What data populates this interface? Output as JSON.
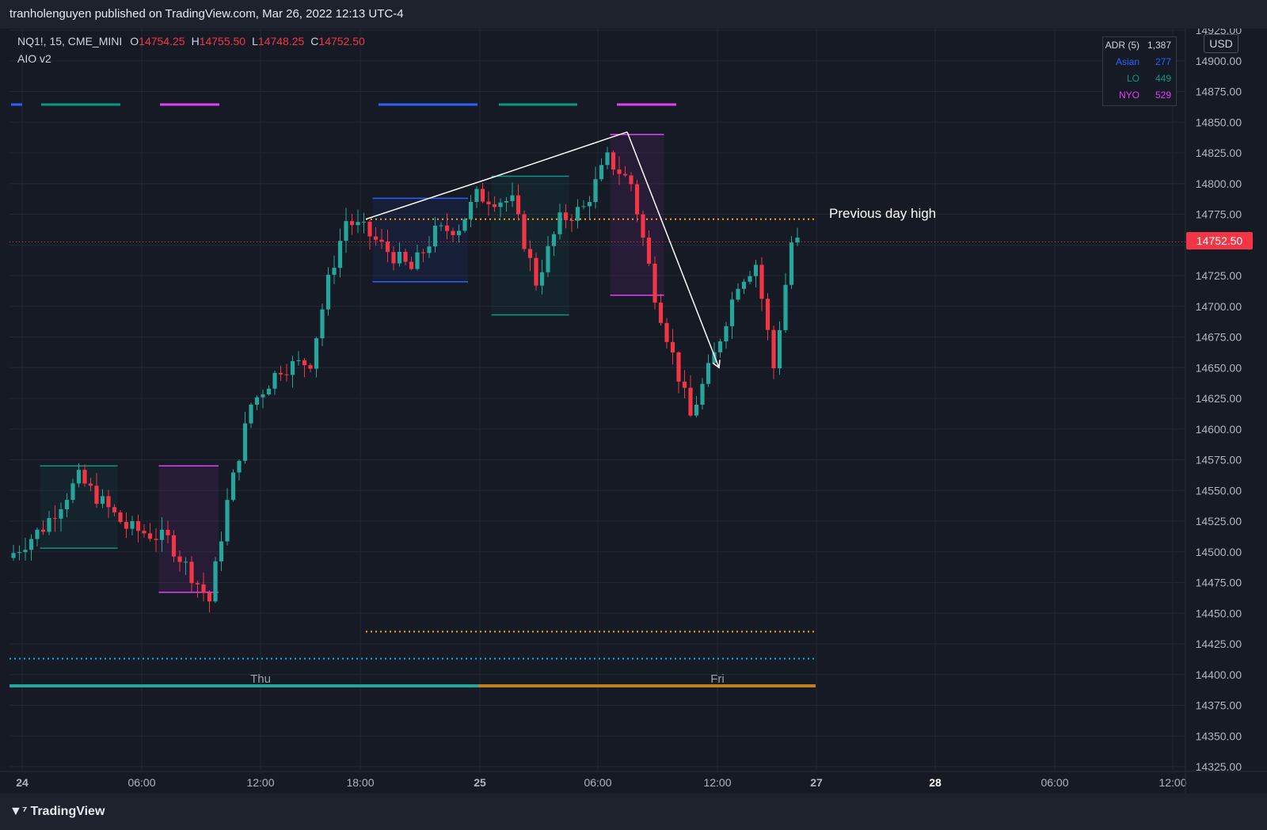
{
  "header": {
    "published": "tranholenguyen published on TradingView.com, Mar 26, 2022 12:13 UTC-4"
  },
  "legend": {
    "symbol": "NQ1!, 15, CME_MINI",
    "o_label": "O",
    "o": "14754.25",
    "h_label": "H",
    "h": "14755.50",
    "l_label": "L",
    "l": "14748.25",
    "c_label": "C",
    "c": "14752.50",
    "indicator": "AIO v2"
  },
  "adr": {
    "title": "ADR (5)",
    "title_value": "1,387",
    "rows": [
      {
        "label": "Asian",
        "value": "277",
        "color": "#2962ff"
      },
      {
        "label": "LO",
        "value": "449",
        "color": "#089981"
      },
      {
        "label": "NYO",
        "value": "529",
        "color": "#e040fb"
      }
    ]
  },
  "currency": "USD",
  "last_price": "14752.50",
  "annotation": "Previous day high",
  "footer": {
    "brand": "TradingView"
  },
  "colors": {
    "up": "#26a69a",
    "down": "#f23645",
    "bg": "#161a25",
    "grid": "#232834",
    "pdh": "#f5a623",
    "low_line": "#00bcd4"
  },
  "chart_data": {
    "type": "candlestick",
    "yticks": [
      "14925.00",
      "14900.00",
      "14875.00",
      "14850.00",
      "14825.00",
      "14800.00",
      "14775.00",
      "14750.00",
      "14725.00",
      "14700.00",
      "14675.00",
      "14650.00",
      "14625.00",
      "14600.00",
      "14575.00",
      "14550.00",
      "14525.00",
      "14500.00",
      "14475.00",
      "14450.00",
      "14425.00",
      "14400.00",
      "14375.00",
      "14350.00",
      "14325.00"
    ],
    "xticks": [
      "24",
      "06:00",
      "12:00",
      "18:00",
      "25",
      "06:00",
      "12:00",
      "27",
      "28",
      "06:00",
      "12:00"
    ],
    "day_labels": [
      "Thu",
      "Fri"
    ],
    "levels": {
      "previous_day_high": 14771,
      "lower_level": 14435,
      "cyan_level": 14413,
      "last": 14752.5
    },
    "anchors": [
      {
        "bar": 0,
        "price": 14495
      },
      {
        "bar": 6,
        "price": 14520
      },
      {
        "bar": 12,
        "price": 14560
      },
      {
        "bar": 20,
        "price": 14520
      },
      {
        "bar": 27,
        "price": 14510
      },
      {
        "bar": 34,
        "price": 14460
      },
      {
        "bar": 37,
        "price": 14540
      },
      {
        "bar": 41,
        "price": 14620
      },
      {
        "bar": 46,
        "price": 14650
      },
      {
        "bar": 51,
        "price": 14655
      },
      {
        "bar": 54,
        "price": 14720
      },
      {
        "bar": 57,
        "price": 14770
      },
      {
        "bar": 60,
        "price": 14762
      },
      {
        "bar": 64,
        "price": 14745
      },
      {
        "bar": 68,
        "price": 14730
      },
      {
        "bar": 72,
        "price": 14760
      },
      {
        "bar": 76,
        "price": 14765
      },
      {
        "bar": 79,
        "price": 14790
      },
      {
        "bar": 85,
        "price": 14785
      },
      {
        "bar": 89,
        "price": 14720
      },
      {
        "bar": 93,
        "price": 14770
      },
      {
        "bar": 97,
        "price": 14780
      },
      {
        "bar": 101,
        "price": 14820
      },
      {
        "bar": 105,
        "price": 14800
      },
      {
        "bar": 109,
        "price": 14710
      },
      {
        "bar": 112,
        "price": 14660
      },
      {
        "bar": 115,
        "price": 14610
      },
      {
        "bar": 119,
        "price": 14660
      },
      {
        "bar": 123,
        "price": 14720
      },
      {
        "bar": 126,
        "price": 14735
      },
      {
        "bar": 129,
        "price": 14650
      },
      {
        "bar": 132,
        "price": 14752
      }
    ],
    "sessions": [
      {
        "name": "Asian",
        "color": "#2962ff",
        "bar_start": 61,
        "bar_end": 76,
        "high": 14788,
        "low": 14720
      },
      {
        "name": "LO",
        "color": "#089981",
        "bar_start": 81,
        "bar_end": 93,
        "high": 14806,
        "low": 14693
      },
      {
        "name": "NYO",
        "color": "#e040fb",
        "bar_start": 101,
        "bar_end": 109,
        "high": 14840,
        "low": 14709
      },
      {
        "name": "LO",
        "color": "#089981",
        "bar_start": 5,
        "bar_end": 17,
        "high": 14570,
        "low": 14503
      },
      {
        "name": "NYO",
        "color": "#e040fb",
        "bar_start": 25,
        "bar_end": 34,
        "high": 14570,
        "low": 14467
      }
    ]
  }
}
